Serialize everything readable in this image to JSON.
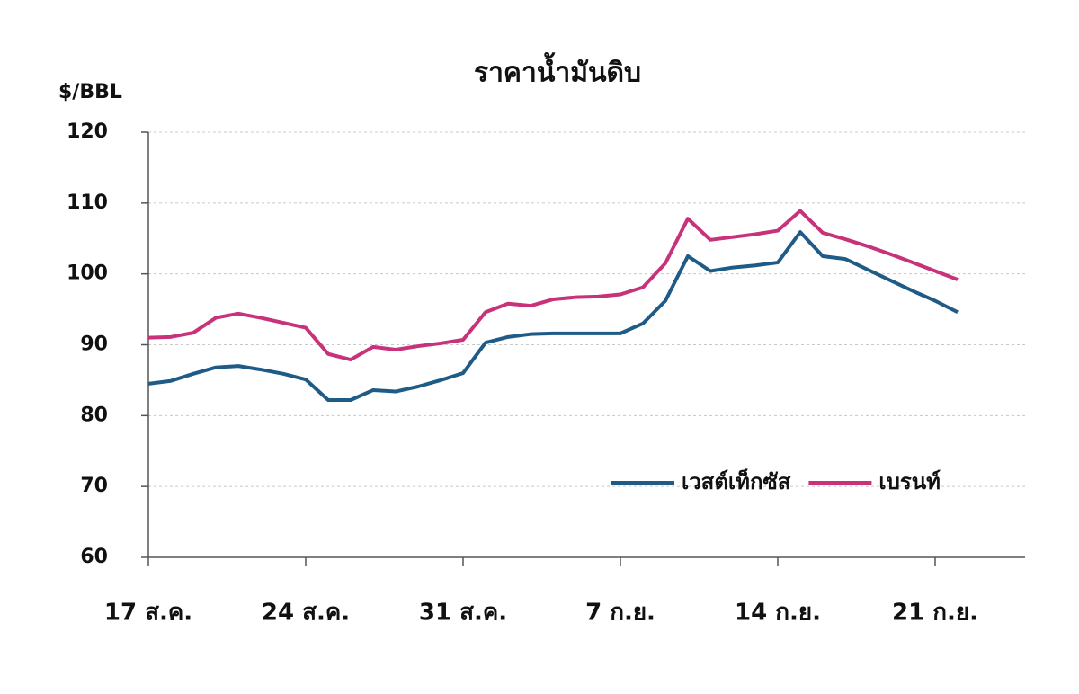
{
  "chart_data": {
    "type": "line",
    "title": "ราคาน้ำมันดิบ",
    "y_label": "$/BBL",
    "categories": [
      "17 ส.ค.",
      null,
      null,
      null,
      null,
      null,
      null,
      "24 ส.ค.",
      null,
      null,
      null,
      null,
      null,
      null,
      "31 ส.ค.",
      null,
      null,
      null,
      null,
      null,
      null,
      "7 ก.ย.",
      null,
      null,
      null,
      null,
      null,
      null,
      "14 ก.ย.",
      null,
      null,
      null,
      null,
      null,
      null,
      "21 ก.ย.",
      null
    ],
    "series": [
      {
        "name": "เวสต์เท็กซัส",
        "color": "#1f5b87",
        "values": [
          84.5,
          84.9,
          85.9,
          86.8,
          87.0,
          86.5,
          85.9,
          85.1,
          82.2,
          82.2,
          83.6,
          83.4,
          84.1,
          85.0,
          86.0,
          90.3,
          91.1,
          91.5,
          91.6,
          91.6,
          91.6,
          91.6,
          93.0,
          96.2,
          102.5,
          100.4,
          100.9,
          101.2,
          101.6,
          105.9,
          102.5,
          102.1,
          100.6,
          99.1,
          97.6,
          96.2,
          94.6
        ]
      },
      {
        "name": "เบรนท์",
        "color": "#c8327a",
        "values": [
          91.0,
          91.1,
          91.7,
          93.8,
          94.4,
          93.8,
          93.1,
          92.4,
          88.7,
          87.9,
          89.7,
          89.3,
          89.8,
          90.2,
          90.7,
          94.6,
          95.8,
          95.5,
          96.4,
          96.7,
          96.8,
          97.1,
          98.1,
          101.5,
          107.8,
          104.8,
          105.2,
          105.6,
          106.1,
          108.9,
          105.8,
          104.9,
          103.9,
          102.8,
          101.6,
          100.4,
          99.2
        ]
      }
    ],
    "ylim": [
      60,
      120
    ],
    "yticks": [
      60,
      70,
      80,
      90,
      100,
      110,
      120
    ],
    "grid": true,
    "legend": "lower right"
  }
}
